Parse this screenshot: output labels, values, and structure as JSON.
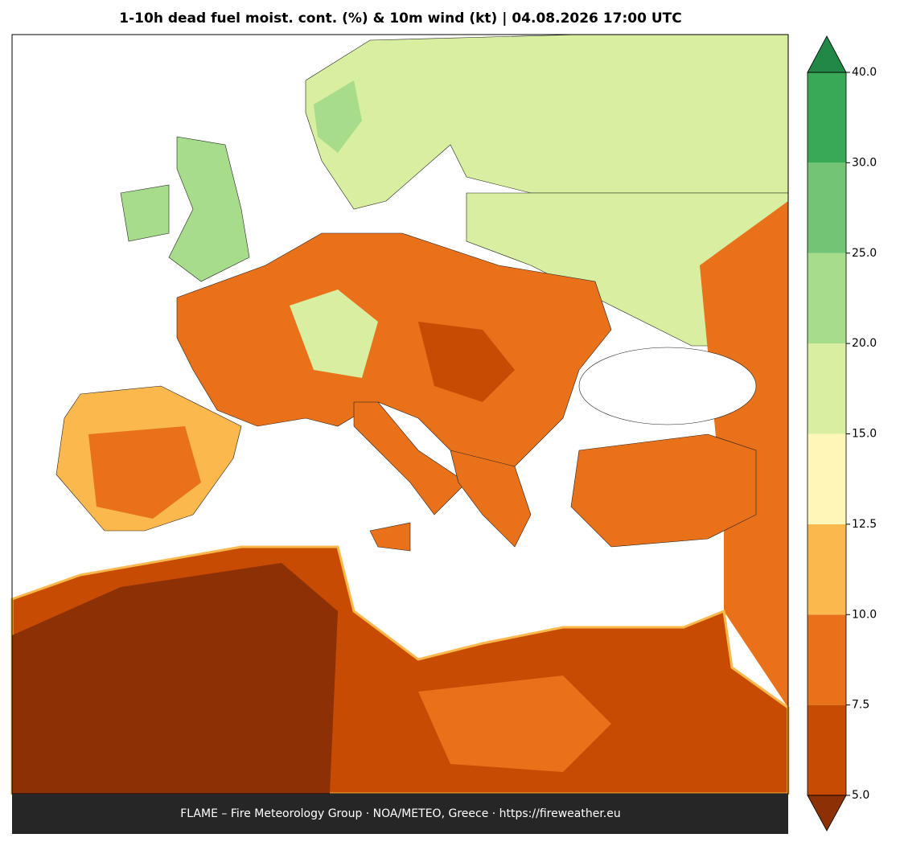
{
  "title": "1-10h dead fuel moist. cont. (%) & 10m wind (kt)  |  04.08.2026 17:00 UTC",
  "footer": "FLAME – Fire Meteorology Group · NOA/METEO, Greece · https://fireweather.eu",
  "colorbar": {
    "ticks": [
      {
        "value": 5,
        "label": "5.0"
      },
      {
        "value": 7.5,
        "label": "7.5"
      },
      {
        "value": 10,
        "label": "10.0"
      },
      {
        "value": 12.5,
        "label": "12.5"
      },
      {
        "value": 15,
        "label": "15.0"
      },
      {
        "value": 20,
        "label": "20.0"
      },
      {
        "value": 25,
        "label": "25.0"
      },
      {
        "value": 30,
        "label": "30.0"
      },
      {
        "value": 40,
        "label": "40.0"
      }
    ],
    "colors": [
      "#c84b04",
      "#e8711a",
      "#fbb84d",
      "#fff6b8",
      "#d8eea0",
      "#a6dc8a",
      "#74c476",
      "#3aa957"
    ],
    "under_color": "#8c3005",
    "over_color": "#218847"
  }
}
